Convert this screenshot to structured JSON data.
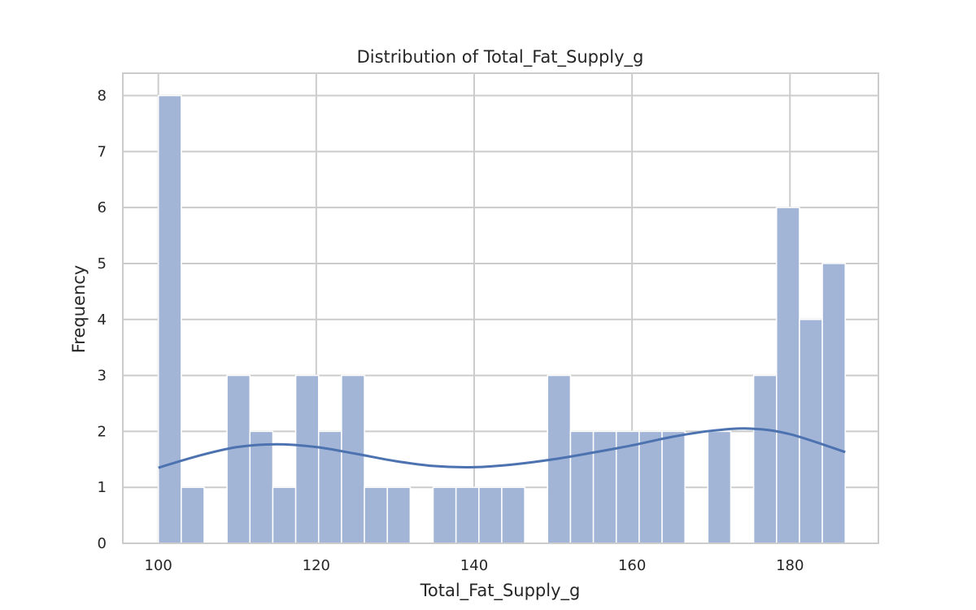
{
  "chart_data": {
    "type": "bar",
    "title": "Distribution of Total_Fat_Supply_g",
    "xlabel": "Total_Fat_Supply_g",
    "ylabel": "Frequency",
    "xlim": [
      95.5,
      191.2
    ],
    "ylim": [
      0,
      8.4
    ],
    "xticks": [
      100,
      120,
      140,
      160,
      180
    ],
    "yticks": [
      0,
      1,
      2,
      3,
      4,
      5,
      6,
      7,
      8
    ],
    "grid": true,
    "bin_start": 100.0,
    "bin_width": 2.9,
    "counts": [
      8,
      1,
      0,
      3,
      2,
      1,
      3,
      2,
      3,
      1,
      1,
      0,
      1,
      1,
      1,
      1,
      0,
      3,
      2,
      2,
      2,
      2,
      2,
      0,
      2,
      0,
      3,
      6,
      4,
      5
    ],
    "kde": {
      "x": [
        100,
        105,
        110,
        115,
        120,
        125,
        130,
        135,
        140,
        145,
        150,
        155,
        160,
        165,
        170,
        175,
        180,
        187
      ],
      "y": [
        1.35,
        1.56,
        1.72,
        1.77,
        1.72,
        1.6,
        1.47,
        1.38,
        1.36,
        1.41,
        1.5,
        1.62,
        1.75,
        1.9,
        2.01,
        2.05,
        1.95,
        1.63
      ]
    },
    "colors": {
      "bar": "#a2b5d7",
      "kde": "#4c72b0",
      "grid": "#cccccc",
      "frame": "#cccccc"
    }
  }
}
